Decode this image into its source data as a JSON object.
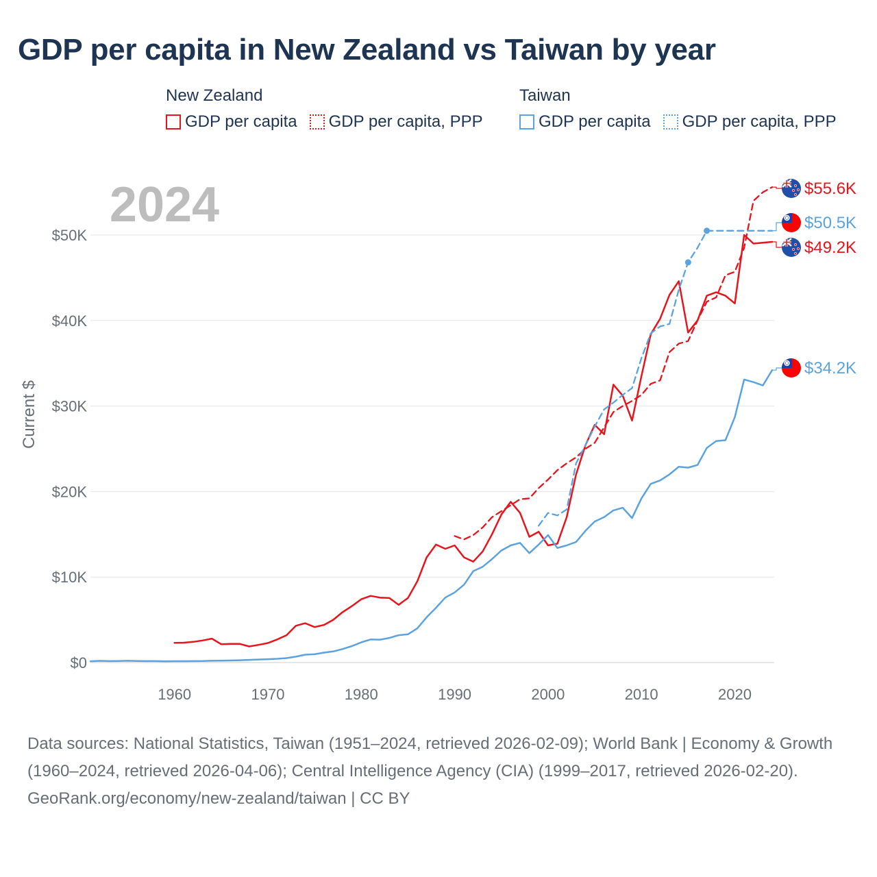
{
  "title": "GDP per capita in New Zealand vs Taiwan by year",
  "legend": {
    "groups": [
      {
        "name": "New Zealand",
        "items": [
          "GDP per capita",
          "GDP per capita, PPP"
        ],
        "color": "#e8141c"
      },
      {
        "name": "Taiwan",
        "items": [
          "GDP per capita",
          "GDP per capita, PPP"
        ],
        "color": "#5aa3e0"
      }
    ]
  },
  "colors": {
    "nz": "#e8141c",
    "tw": "#5aa3e0",
    "grid": "#e6e6e6",
    "year_label": "#bdbdbd",
    "axis_text": "#666e78",
    "title": "#1d3452"
  },
  "chart_data": {
    "type": "line",
    "year_label": "2024",
    "ylabel": "Current $",
    "xlim": [
      1951,
      2024
    ],
    "ylim": [
      0,
      55000
    ],
    "x_ticks": [
      1960,
      1970,
      1980,
      1990,
      2000,
      2010,
      2020
    ],
    "y_ticks": [
      {
        "value": 0,
        "label": "$0"
      },
      {
        "value": 10000,
        "label": "$10K"
      },
      {
        "value": 20000,
        "label": "$20K"
      },
      {
        "value": 30000,
        "label": "$30K"
      },
      {
        "value": 40000,
        "label": "$40K"
      },
      {
        "value": 50000,
        "label": "$50K"
      }
    ],
    "series": [
      {
        "name": "New Zealand GDP per capita",
        "country": "nz",
        "style": "solid",
        "end_label": "$49.2K",
        "points": [
          [
            1960,
            2300
          ],
          [
            1961,
            2320
          ],
          [
            1962,
            2420
          ],
          [
            1963,
            2580
          ],
          [
            1964,
            2800
          ],
          [
            1965,
            2150
          ],
          [
            1966,
            2180
          ],
          [
            1967,
            2180
          ],
          [
            1968,
            1880
          ],
          [
            1969,
            2070
          ],
          [
            1970,
            2280
          ],
          [
            1971,
            2700
          ],
          [
            1972,
            3200
          ],
          [
            1973,
            4300
          ],
          [
            1974,
            4600
          ],
          [
            1975,
            4150
          ],
          [
            1976,
            4400
          ],
          [
            1977,
            5000
          ],
          [
            1978,
            5900
          ],
          [
            1979,
            6600
          ],
          [
            1980,
            7400
          ],
          [
            1981,
            7800
          ],
          [
            1982,
            7600
          ],
          [
            1983,
            7550
          ],
          [
            1984,
            6750
          ],
          [
            1985,
            7550
          ],
          [
            1986,
            9500
          ],
          [
            1987,
            12300
          ],
          [
            1988,
            13800
          ],
          [
            1989,
            13300
          ],
          [
            1990,
            13700
          ],
          [
            1991,
            12300
          ],
          [
            1992,
            11800
          ],
          [
            1993,
            13000
          ],
          [
            1994,
            15000
          ],
          [
            1995,
            17300
          ],
          [
            1996,
            18800
          ],
          [
            1997,
            17500
          ],
          [
            1998,
            14700
          ],
          [
            1999,
            15300
          ],
          [
            2000,
            13700
          ],
          [
            2001,
            13900
          ],
          [
            2002,
            17000
          ],
          [
            2003,
            22000
          ],
          [
            2004,
            25400
          ],
          [
            2005,
            27800
          ],
          [
            2006,
            26700
          ],
          [
            2007,
            32500
          ],
          [
            2008,
            31200
          ],
          [
            2009,
            28300
          ],
          [
            2010,
            33500
          ],
          [
            2011,
            38400
          ],
          [
            2012,
            40200
          ],
          [
            2013,
            43000
          ],
          [
            2014,
            44600
          ],
          [
            2015,
            38600
          ],
          [
            2016,
            40000
          ],
          [
            2017,
            42900
          ],
          [
            2018,
            43300
          ],
          [
            2019,
            42900
          ],
          [
            2020,
            42000
          ],
          [
            2021,
            50000
          ],
          [
            2022,
            49000
          ],
          [
            2023,
            49100
          ],
          [
            2024,
            49200
          ]
        ]
      },
      {
        "name": "New Zealand GDP per capita, PPP",
        "country": "nz",
        "style": "dashed",
        "end_label": "$55.6K",
        "points": [
          [
            1990,
            14800
          ],
          [
            1991,
            14400
          ],
          [
            1992,
            14900
          ],
          [
            1993,
            15800
          ],
          [
            1994,
            17000
          ],
          [
            1995,
            17700
          ],
          [
            1996,
            18400
          ],
          [
            1997,
            19100
          ],
          [
            1998,
            19200
          ],
          [
            1999,
            20400
          ],
          [
            2000,
            21400
          ],
          [
            2001,
            22500
          ],
          [
            2002,
            23300
          ],
          [
            2003,
            24000
          ],
          [
            2004,
            25000
          ],
          [
            2005,
            25700
          ],
          [
            2006,
            27500
          ],
          [
            2007,
            29300
          ],
          [
            2008,
            30000
          ],
          [
            2009,
            30600
          ],
          [
            2010,
            31300
          ],
          [
            2011,
            32600
          ],
          [
            2012,
            33000
          ],
          [
            2013,
            36300
          ],
          [
            2014,
            37300
          ],
          [
            2015,
            37600
          ],
          [
            2016,
            40000
          ],
          [
            2017,
            42200
          ],
          [
            2018,
            42700
          ],
          [
            2019,
            45300
          ],
          [
            2020,
            45700
          ],
          [
            2021,
            48500
          ],
          [
            2022,
            54000
          ],
          [
            2023,
            55000
          ],
          [
            2024,
            55600
          ]
        ]
      },
      {
        "name": "Taiwan GDP per capita",
        "country": "tw",
        "style": "solid",
        "end_label": "$34.2K",
        "points": [
          [
            1951,
            150
          ],
          [
            1952,
            200
          ],
          [
            1953,
            170
          ],
          [
            1954,
            180
          ],
          [
            1955,
            210
          ],
          [
            1956,
            180
          ],
          [
            1957,
            170
          ],
          [
            1958,
            170
          ],
          [
            1959,
            150
          ],
          [
            1960,
            160
          ],
          [
            1961,
            160
          ],
          [
            1962,
            170
          ],
          [
            1963,
            180
          ],
          [
            1964,
            210
          ],
          [
            1965,
            220
          ],
          [
            1966,
            240
          ],
          [
            1967,
            270
          ],
          [
            1968,
            310
          ],
          [
            1969,
            350
          ],
          [
            1970,
            390
          ],
          [
            1971,
            440
          ],
          [
            1972,
            520
          ],
          [
            1973,
            690
          ],
          [
            1974,
            920
          ],
          [
            1975,
            970
          ],
          [
            1976,
            1160
          ],
          [
            1977,
            1300
          ],
          [
            1978,
            1580
          ],
          [
            1979,
            1920
          ],
          [
            1980,
            2360
          ],
          [
            1981,
            2700
          ],
          [
            1982,
            2680
          ],
          [
            1983,
            2880
          ],
          [
            1984,
            3200
          ],
          [
            1985,
            3300
          ],
          [
            1986,
            4000
          ],
          [
            1987,
            5300
          ],
          [
            1988,
            6400
          ],
          [
            1989,
            7600
          ],
          [
            1990,
            8200
          ],
          [
            1991,
            9100
          ],
          [
            1992,
            10700
          ],
          [
            1993,
            11200
          ],
          [
            1994,
            12100
          ],
          [
            1995,
            13100
          ],
          [
            1996,
            13700
          ],
          [
            1997,
            14000
          ],
          [
            1998,
            12800
          ],
          [
            1999,
            13800
          ],
          [
            2000,
            14900
          ],
          [
            2001,
            13400
          ],
          [
            2002,
            13700
          ],
          [
            2003,
            14100
          ],
          [
            2004,
            15400
          ],
          [
            2005,
            16500
          ],
          [
            2006,
            17000
          ],
          [
            2007,
            17800
          ],
          [
            2008,
            18100
          ],
          [
            2009,
            16900
          ],
          [
            2010,
            19200
          ],
          [
            2011,
            20900
          ],
          [
            2012,
            21300
          ],
          [
            2013,
            22000
          ],
          [
            2014,
            22900
          ],
          [
            2015,
            22800
          ],
          [
            2016,
            23100
          ],
          [
            2017,
            25100
          ],
          [
            2018,
            25900
          ],
          [
            2019,
            26000
          ],
          [
            2020,
            28700
          ],
          [
            2021,
            33100
          ],
          [
            2022,
            32800
          ],
          [
            2023,
            32400
          ],
          [
            2024,
            34200
          ]
        ]
      },
      {
        "name": "Taiwan GDP per capita, PPP",
        "country": "tw",
        "style": "dashed",
        "end_label": "$50.5K",
        "points": [
          [
            1999,
            16000
          ],
          [
            2000,
            17500
          ],
          [
            2001,
            17200
          ],
          [
            2002,
            17900
          ],
          [
            2003,
            23300
          ],
          [
            2004,
            25400
          ],
          [
            2005,
            27600
          ],
          [
            2006,
            29600
          ],
          [
            2007,
            30400
          ],
          [
            2008,
            31300
          ],
          [
            2009,
            32100
          ],
          [
            2010,
            35600
          ],
          [
            2011,
            38500
          ],
          [
            2012,
            39300
          ],
          [
            2013,
            39600
          ],
          [
            2014,
            43600
          ],
          [
            2015,
            46800
          ],
          [
            2016,
            48500
          ],
          [
            2017,
            50500
          ],
          [
            2024,
            50500
          ]
        ],
        "markers": [
          [
            2015,
            46800
          ],
          [
            2017,
            50500
          ]
        ]
      }
    ]
  },
  "footer": {
    "sources": "Data sources: National Statistics, Taiwan (1951–2024, retrieved 2026-02-09); World Bank | Economy & Growth (1960–2024, retrieved 2026-04-06); Central Intelligence Agency (CIA) (1999–2017, retrieved 2026-02-20).",
    "attribution": "GeoRank.org/economy/new-zealand/taiwan | CC BY"
  }
}
